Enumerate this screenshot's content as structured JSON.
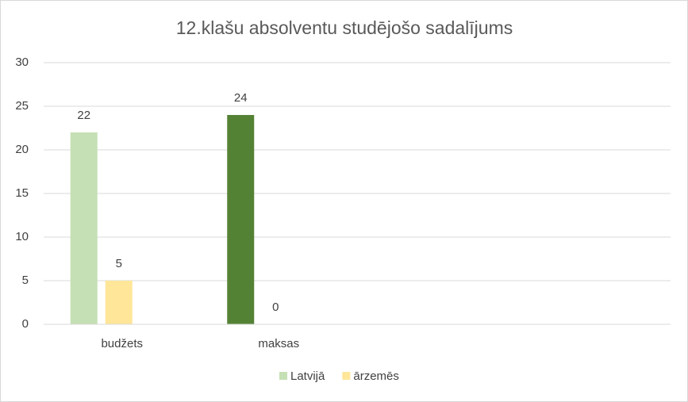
{
  "chart_data": {
    "type": "bar",
    "title": "12.klašu absolventu studējošo sadalījums",
    "categories": [
      "budžets",
      "maksas",
      null,
      null
    ],
    "series": [
      {
        "name": "Latvijā",
        "color": "#c5e0b4",
        "point_colors": [
          "#c5e0b4",
          "#548235",
          null,
          null
        ],
        "values": [
          22,
          24,
          null,
          null
        ]
      },
      {
        "name": "ārzemēs",
        "color": "#ffe699",
        "values": [
          5,
          0,
          null,
          null
        ]
      }
    ],
    "ylim": [
      0,
      30
    ],
    "yticks": [
      0,
      5,
      10,
      15,
      20,
      25,
      30
    ],
    "grid": true,
    "data_labels": true,
    "legend": "bottom"
  }
}
